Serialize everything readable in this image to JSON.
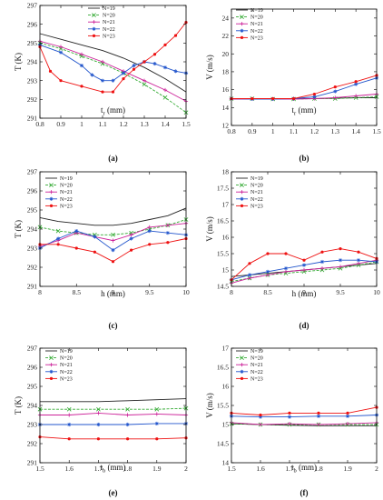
{
  "chart_data": [
    {
      "type": "line",
      "panel_label": "(a)",
      "xlabel": "t",
      "xlabel_sub": "r",
      "xlabel_unit": " (mm)",
      "ylabel": "T (K)",
      "xlim": [
        0.8,
        1.5
      ],
      "ylim": [
        291,
        297
      ],
      "xticks": [
        0.8,
        0.9,
        1.0,
        1.1,
        1.2,
        1.3,
        1.4,
        1.5
      ],
      "xtick_labels": [
        "0.8",
        "0.9",
        "1",
        "1.1",
        "1.2",
        "1.3",
        "1.4",
        "1.5"
      ],
      "yticks": [
        291,
        292,
        293,
        294,
        295,
        296,
        297
      ],
      "legend_position": "top-right",
      "series": [
        {
          "name": "N=19",
          "color": "#222222",
          "marker": "none",
          "x": [
            0.8,
            0.9,
            1.0,
            1.1,
            1.2,
            1.3,
            1.4,
            1.5
          ],
          "y": [
            295.5,
            295.2,
            294.9,
            294.6,
            294.2,
            293.7,
            293.1,
            292.4
          ]
        },
        {
          "name": "N=20",
          "color": "#33aa33",
          "marker": "x",
          "x": [
            0.8,
            0.9,
            1.0,
            1.1,
            1.2,
            1.3,
            1.4,
            1.5
          ],
          "y": [
            295.0,
            294.7,
            294.3,
            293.9,
            293.4,
            292.8,
            292.1,
            291.3
          ]
        },
        {
          "name": "N=21",
          "color": "#cc2299",
          "marker": "plus",
          "x": [
            0.8,
            0.9,
            1.0,
            1.1,
            1.2,
            1.3,
            1.4,
            1.5
          ],
          "y": [
            295.1,
            294.8,
            294.4,
            294.0,
            293.5,
            293.0,
            292.5,
            291.9
          ]
        },
        {
          "name": "N=22",
          "color": "#2255cc",
          "marker": "star",
          "x": [
            0.8,
            0.9,
            1.0,
            1.05,
            1.1,
            1.15,
            1.2,
            1.25,
            1.3,
            1.35,
            1.4,
            1.45,
            1.5
          ],
          "y": [
            294.9,
            294.5,
            293.8,
            293.3,
            293.0,
            293.0,
            293.4,
            293.8,
            294.0,
            293.9,
            293.7,
            293.5,
            293.4
          ]
        },
        {
          "name": "N=23",
          "color": "#ee1111",
          "marker": "dot",
          "x": [
            0.8,
            0.85,
            0.9,
            1.0,
            1.1,
            1.15,
            1.2,
            1.25,
            1.3,
            1.35,
            1.4,
            1.45,
            1.5
          ],
          "y": [
            294.8,
            293.5,
            293.0,
            292.7,
            292.4,
            292.4,
            293.1,
            293.6,
            294.0,
            294.4,
            294.9,
            295.4,
            296.1
          ]
        }
      ]
    },
    {
      "type": "line",
      "panel_label": "(b)",
      "xlabel": "t",
      "xlabel_sub": "r",
      "xlabel_unit": " (mm)",
      "ylabel": "V (m/s)",
      "xlim": [
        0.8,
        1.5
      ],
      "ylim": [
        12,
        25
      ],
      "xticks": [
        0.8,
        0.9,
        1.0,
        1.1,
        1.2,
        1.3,
        1.4,
        1.5
      ],
      "xtick_labels": [
        "0.8",
        "0.9",
        "1",
        "1.1",
        "1.2",
        "1.3",
        "1.4",
        "1.5"
      ],
      "yticks": [
        12,
        14,
        16,
        18,
        20,
        22,
        24
      ],
      "legend_position": "top-left",
      "series": [
        {
          "name": "N=19",
          "color": "#222222",
          "marker": "none",
          "x": [
            0.8,
            0.9,
            1.0,
            1.1,
            1.2,
            1.3,
            1.4,
            1.5
          ],
          "y": [
            15.0,
            15.0,
            15.0,
            15.0,
            15.0,
            15.05,
            15.1,
            15.1
          ]
        },
        {
          "name": "N=20",
          "color": "#33aa33",
          "marker": "x",
          "x": [
            0.8,
            0.9,
            1.0,
            1.1,
            1.2,
            1.3,
            1.4,
            1.5
          ],
          "y": [
            15.0,
            15.0,
            14.95,
            14.95,
            15.0,
            15.0,
            15.1,
            15.2
          ]
        },
        {
          "name": "N=21",
          "color": "#cc2299",
          "marker": "plus",
          "x": [
            0.8,
            0.9,
            1.0,
            1.1,
            1.2,
            1.3,
            1.4,
            1.5
          ],
          "y": [
            14.95,
            14.95,
            14.95,
            14.95,
            15.0,
            15.1,
            15.3,
            15.5
          ]
        },
        {
          "name": "N=22",
          "color": "#2255cc",
          "marker": "star",
          "x": [
            0.8,
            0.9,
            1.0,
            1.1,
            1.2,
            1.3,
            1.4,
            1.5
          ],
          "y": [
            15.0,
            14.95,
            14.95,
            15.0,
            15.2,
            15.8,
            16.6,
            17.3
          ]
        },
        {
          "name": "N=23",
          "color": "#ee1111",
          "marker": "dot",
          "x": [
            0.8,
            0.9,
            1.0,
            1.1,
            1.2,
            1.3,
            1.4,
            1.5
          ],
          "y": [
            15.0,
            15.0,
            15.0,
            15.0,
            15.5,
            16.3,
            16.9,
            17.6
          ]
        }
      ]
    },
    {
      "type": "line",
      "panel_label": "(c)",
      "xlabel": "h (mm)",
      "ylabel": "T (K)",
      "xlim": [
        8,
        10
      ],
      "ylim": [
        291,
        297
      ],
      "xticks": [
        8,
        8.5,
        9,
        9.5,
        10
      ],
      "xtick_labels": [
        "8",
        "8.5",
        "9",
        "9.5",
        "10"
      ],
      "yticks": [
        291,
        292,
        293,
        294,
        295,
        296,
        297
      ],
      "legend_position": "top-left",
      "series": [
        {
          "name": "N=19",
          "color": "#222222",
          "marker": "none",
          "x": [
            8,
            8.25,
            8.5,
            8.75,
            9,
            9.25,
            9.5,
            9.75,
            10
          ],
          "y": [
            294.6,
            294.4,
            294.3,
            294.2,
            294.2,
            294.3,
            294.5,
            294.7,
            295.1
          ]
        },
        {
          "name": "N=20",
          "color": "#33aa33",
          "marker": "x",
          "x": [
            8,
            8.25,
            8.5,
            8.75,
            9,
            9.25,
            9.5,
            9.75,
            10
          ],
          "y": [
            294.1,
            293.9,
            293.8,
            293.7,
            293.7,
            293.8,
            294.0,
            294.2,
            294.5
          ]
        },
        {
          "name": "N=21",
          "color": "#cc2299",
          "marker": "plus",
          "x": [
            8,
            8.25,
            8.5,
            8.75,
            9,
            9.25,
            9.5,
            9.75,
            10
          ],
          "y": [
            293.1,
            293.4,
            293.8,
            293.6,
            293.4,
            293.7,
            294.1,
            294.2,
            294.3
          ]
        },
        {
          "name": "N=22",
          "color": "#2255cc",
          "marker": "star",
          "x": [
            8,
            8.25,
            8.5,
            8.75,
            9,
            9.25,
            9.5,
            9.75,
            10
          ],
          "y": [
            293.0,
            293.5,
            293.9,
            293.6,
            292.9,
            293.5,
            293.9,
            293.8,
            293.7
          ]
        },
        {
          "name": "N=23",
          "color": "#ee1111",
          "marker": "dot",
          "x": [
            8,
            8.25,
            8.5,
            8.75,
            9,
            9.25,
            9.5,
            9.75,
            10
          ],
          "y": [
            293.2,
            293.2,
            293.0,
            292.8,
            292.3,
            292.9,
            293.2,
            293.3,
            293.5
          ]
        }
      ]
    },
    {
      "type": "line",
      "panel_label": "(d)",
      "xlabel": "h (mm)",
      "ylabel": "V (m/s)",
      "xlim": [
        8,
        10
      ],
      "ylim": [
        14.5,
        18
      ],
      "xticks": [
        8,
        8.5,
        9,
        9.5,
        10
      ],
      "xtick_labels": [
        "8",
        "8.5",
        "9",
        "9.5",
        "10"
      ],
      "yticks": [
        14.5,
        15,
        15.5,
        16,
        16.5,
        17,
        17.5,
        18
      ],
      "legend_position": "top-left",
      "series": [
        {
          "name": "N=19",
          "color": "#222222",
          "marker": "none",
          "x": [
            8,
            8.25,
            8.5,
            8.75,
            9,
            9.25,
            9.5,
            9.75,
            10
          ],
          "y": [
            14.8,
            14.85,
            14.9,
            14.95,
            15.0,
            15.05,
            15.1,
            15.15,
            15.2
          ]
        },
        {
          "name": "N=20",
          "color": "#33aa33",
          "marker": "x",
          "x": [
            8,
            8.25,
            8.5,
            8.75,
            9,
            9.25,
            9.5,
            9.75,
            10
          ],
          "y": [
            14.65,
            14.75,
            14.85,
            14.9,
            14.95,
            15.0,
            15.05,
            15.15,
            15.25
          ]
        },
        {
          "name": "N=21",
          "color": "#cc2299",
          "marker": "plus",
          "x": [
            8,
            8.25,
            8.5,
            8.75,
            9,
            9.25,
            9.5,
            9.75,
            10
          ],
          "y": [
            14.6,
            14.75,
            14.85,
            14.95,
            15.0,
            15.05,
            15.1,
            15.2,
            15.3
          ]
        },
        {
          "name": "N=22",
          "color": "#2255cc",
          "marker": "star",
          "x": [
            8,
            8.25,
            8.5,
            8.75,
            9,
            9.25,
            9.5,
            9.75,
            10
          ],
          "y": [
            14.7,
            14.85,
            14.95,
            15.05,
            15.15,
            15.25,
            15.3,
            15.3,
            15.25
          ]
        },
        {
          "name": "N=23",
          "color": "#ee1111",
          "marker": "dot",
          "x": [
            8,
            8.25,
            8.5,
            8.75,
            9,
            9.25,
            9.5,
            9.75,
            10
          ],
          "y": [
            14.7,
            15.2,
            15.5,
            15.5,
            15.3,
            15.55,
            15.65,
            15.55,
            15.35
          ]
        }
      ]
    },
    {
      "type": "line",
      "panel_label": "(e)",
      "xlabel": "t",
      "xlabel_sub": "b",
      "xlabel_unit": " (mm)",
      "ylabel": "T (K)",
      "xlim": [
        1.5,
        2
      ],
      "ylim": [
        291,
        297
      ],
      "xticks": [
        1.5,
        1.6,
        1.7,
        1.8,
        1.9,
        2
      ],
      "xtick_labels": [
        "1.5",
        "1.6",
        "1.7",
        "1.8",
        "1.9",
        "2"
      ],
      "yticks": [
        291,
        292,
        293,
        294,
        295,
        296,
        297
      ],
      "legend_position": "top-left",
      "series": [
        {
          "name": "N=19",
          "color": "#222222",
          "marker": "none",
          "x": [
            1.5,
            1.6,
            1.7,
            1.8,
            1.9,
            2.0
          ],
          "y": [
            294.2,
            294.2,
            294.2,
            294.25,
            294.3,
            294.35
          ]
        },
        {
          "name": "N=20",
          "color": "#33aa33",
          "marker": "x",
          "x": [
            1.5,
            1.6,
            1.7,
            1.8,
            1.9,
            2.0
          ],
          "y": [
            293.8,
            293.8,
            293.8,
            293.8,
            293.8,
            293.85
          ]
        },
        {
          "name": "N=21",
          "color": "#cc2299",
          "marker": "plus",
          "x": [
            1.5,
            1.6,
            1.7,
            1.8,
            1.9,
            2.0
          ],
          "y": [
            293.5,
            293.5,
            293.6,
            293.5,
            293.55,
            293.5
          ]
        },
        {
          "name": "N=22",
          "color": "#2255cc",
          "marker": "star",
          "x": [
            1.5,
            1.6,
            1.7,
            1.8,
            1.9,
            2.0
          ],
          "y": [
            293.0,
            293.0,
            293.0,
            293.0,
            293.05,
            293.05
          ]
        },
        {
          "name": "N=23",
          "color": "#ee1111",
          "marker": "dot",
          "x": [
            1.5,
            1.6,
            1.7,
            1.8,
            1.9,
            2.0
          ],
          "y": [
            292.35,
            292.25,
            292.25,
            292.25,
            292.25,
            292.3
          ]
        }
      ]
    },
    {
      "type": "line",
      "panel_label": "(f)",
      "xlabel": "t",
      "xlabel_sub": "b",
      "xlabel_unit": " (mm)",
      "ylabel": "V (m/s)",
      "xlim": [
        1.5,
        2
      ],
      "ylim": [
        14,
        17
      ],
      "xticks": [
        1.5,
        1.6,
        1.7,
        1.8,
        1.9,
        2
      ],
      "xtick_labels": [
        "1.5",
        "1.6",
        "1.7",
        "1.8",
        "1.9",
        "2"
      ],
      "yticks": [
        14,
        14.5,
        15,
        15.5,
        16,
        16.5,
        17
      ],
      "legend_position": "top-left",
      "series": [
        {
          "name": "N=19",
          "color": "#222222",
          "marker": "none",
          "x": [
            1.5,
            1.6,
            1.7,
            1.8,
            1.9,
            2.0
          ],
          "y": [
            15.02,
            15.0,
            14.98,
            14.97,
            14.97,
            14.97
          ]
        },
        {
          "name": "N=20",
          "color": "#33aa33",
          "marker": "x",
          "x": [
            1.5,
            1.6,
            1.7,
            1.8,
            1.9,
            2.0
          ],
          "y": [
            15.02,
            15.0,
            15.0,
            15.0,
            15.0,
            15.0
          ]
        },
        {
          "name": "N=21",
          "color": "#cc2299",
          "marker": "plus",
          "x": [
            1.5,
            1.6,
            1.7,
            1.8,
            1.9,
            2.0
          ],
          "y": [
            15.05,
            15.0,
            15.02,
            15.0,
            15.02,
            15.05
          ]
        },
        {
          "name": "N=22",
          "color": "#2255cc",
          "marker": "star",
          "x": [
            1.5,
            1.6,
            1.7,
            1.8,
            1.9,
            2.0
          ],
          "y": [
            15.22,
            15.2,
            15.2,
            15.22,
            15.22,
            15.25
          ]
        },
        {
          "name": "N=23",
          "color": "#ee1111",
          "marker": "dot",
          "x": [
            1.5,
            1.6,
            1.7,
            1.8,
            1.9,
            2.0
          ],
          "y": [
            15.3,
            15.25,
            15.3,
            15.3,
            15.3,
            15.45
          ]
        }
      ]
    }
  ]
}
